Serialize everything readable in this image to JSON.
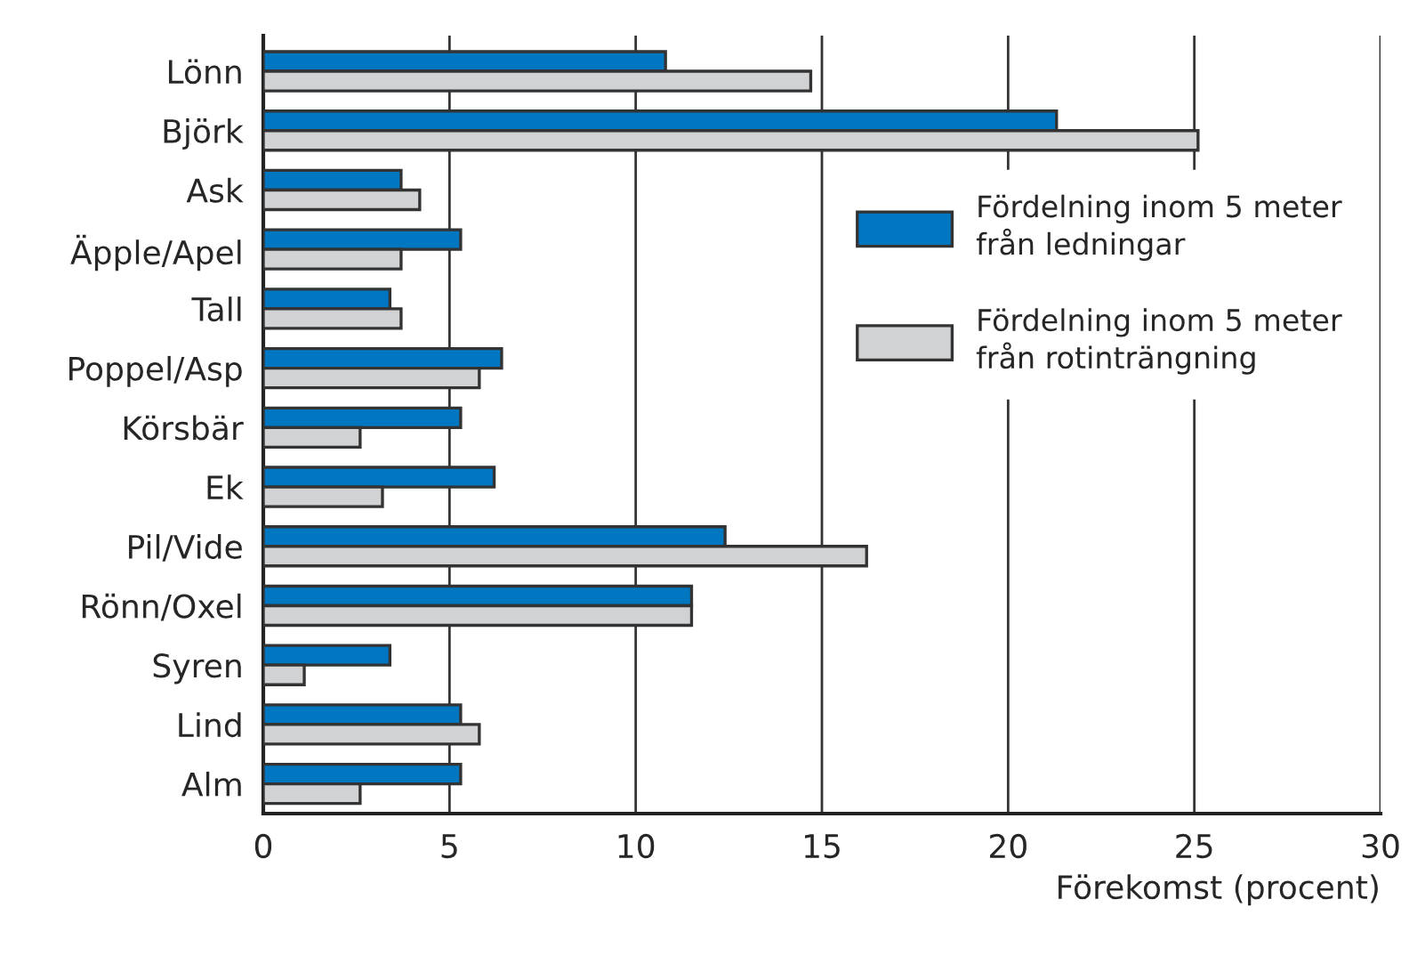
{
  "chart_data": {
    "type": "bar",
    "orientation": "horizontal",
    "xlabel": "Förekomst (procent)",
    "categories": [
      "Lönn",
      "Björk",
      "Ask",
      "Äpple/Apel",
      "Tall",
      "Poppel/Asp",
      "Körsbär",
      "Ek",
      "Pil/Vide",
      "Rönn/Oxel",
      "Syren",
      "Lind",
      "Alm"
    ],
    "series": [
      {
        "name": "Fördelning inom 5 meter från ledningar",
        "color": "#0077c0",
        "values": [
          10.8,
          21.3,
          3.7,
          5.3,
          3.4,
          6.4,
          5.3,
          6.2,
          12.4,
          11.5,
          3.4,
          5.3,
          5.3
        ]
      },
      {
        "name": "Fördelning inom 5 meter från rotinträngning",
        "color": "#d1d2d4",
        "values": [
          14.7,
          25.1,
          4.2,
          3.7,
          3.7,
          5.8,
          2.6,
          3.2,
          16.2,
          11.5,
          1.1,
          5.8,
          2.6
        ]
      }
    ],
    "xlim": [
      0,
      30
    ],
    "xticks": [
      0,
      5,
      10,
      15,
      20,
      25,
      30
    ],
    "grid": "x",
    "legend": "right"
  }
}
